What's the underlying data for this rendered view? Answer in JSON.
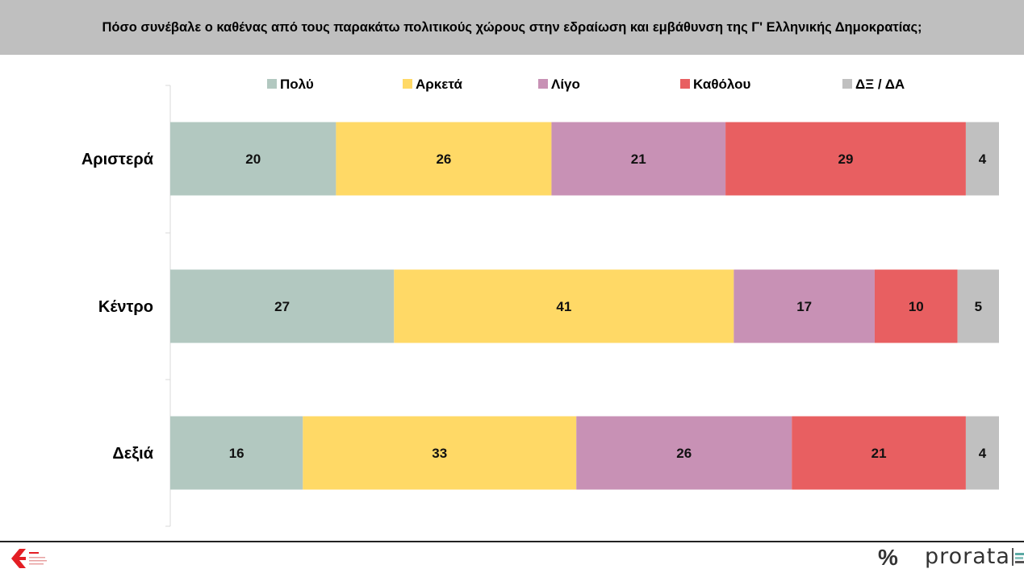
{
  "header": {
    "title": "Πόσο συνέβαλε ο καθένας από τους παρακάτω πολιτικούς χώρους στην εδραίωση και εμβάθυνση της Γ' Ελληνικής Δημοκρατίας;"
  },
  "chart_data": {
    "type": "bar",
    "orientation": "horizontal",
    "stacked": true,
    "categories": [
      "Αριστερά",
      "Κέντρο",
      "Δεξιά"
    ],
    "series": [
      {
        "name": "Πολύ",
        "color": "#b2c8c0",
        "values": [
          20,
          27,
          16
        ]
      },
      {
        "name": "Αρκετά",
        "color": "#ffd966",
        "values": [
          26,
          41,
          33
        ]
      },
      {
        "name": "Λίγο",
        "color": "#c891b5",
        "values": [
          21,
          17,
          26
        ]
      },
      {
        "name": "Καθόλου",
        "color": "#e85f61",
        "values": [
          29,
          10,
          21
        ]
      },
      {
        "name": "ΔΞ / ΔΑ",
        "color": "#c0c0c0",
        "values": [
          4,
          5,
          4
        ]
      }
    ],
    "xlim": [
      0,
      100
    ],
    "legend": "top",
    "grid": false,
    "data_labels": true
  },
  "footer": {
    "brand_left": "ΕΛΛΗΝΙΚΟ ΔΗΜΟΚΡΑΤΙΚΟ ΚΕΝΤΡΟ",
    "brand_percent": "%",
    "brand_right": "prorata"
  }
}
